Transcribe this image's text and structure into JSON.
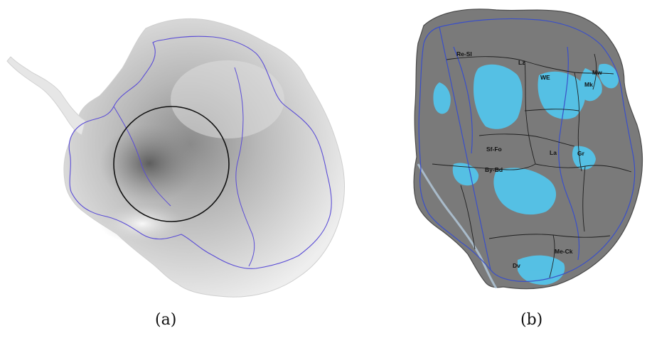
{
  "figure": {
    "panel_a": {
      "caption": "(a)"
    },
    "panel_b": {
      "caption": "(b)",
      "regions": [
        {
          "key": "re_sl",
          "label": "Re-Sl"
        },
        {
          "key": "lz",
          "label": "Lz"
        },
        {
          "key": "we",
          "label": "WE"
        },
        {
          "key": "mw",
          "label": "Mw"
        },
        {
          "key": "mk",
          "label": "Mk"
        },
        {
          "key": "sf_fo",
          "label": "Sf-Fo"
        },
        {
          "key": "la",
          "label": "La"
        },
        {
          "key": "gr",
          "label": "Gr"
        },
        {
          "key": "by_bd",
          "label": "By-Bd"
        },
        {
          "key": "me_ck",
          "label": "Me-Ck"
        },
        {
          "key": "dv",
          "label": "Dv"
        }
      ]
    },
    "colors": {
      "ice_highlight": "#52c8f0",
      "grounding_line": "#5a4cd6",
      "basin_line": "#1f1f1f",
      "terrain": "#7a7a7a"
    }
  }
}
